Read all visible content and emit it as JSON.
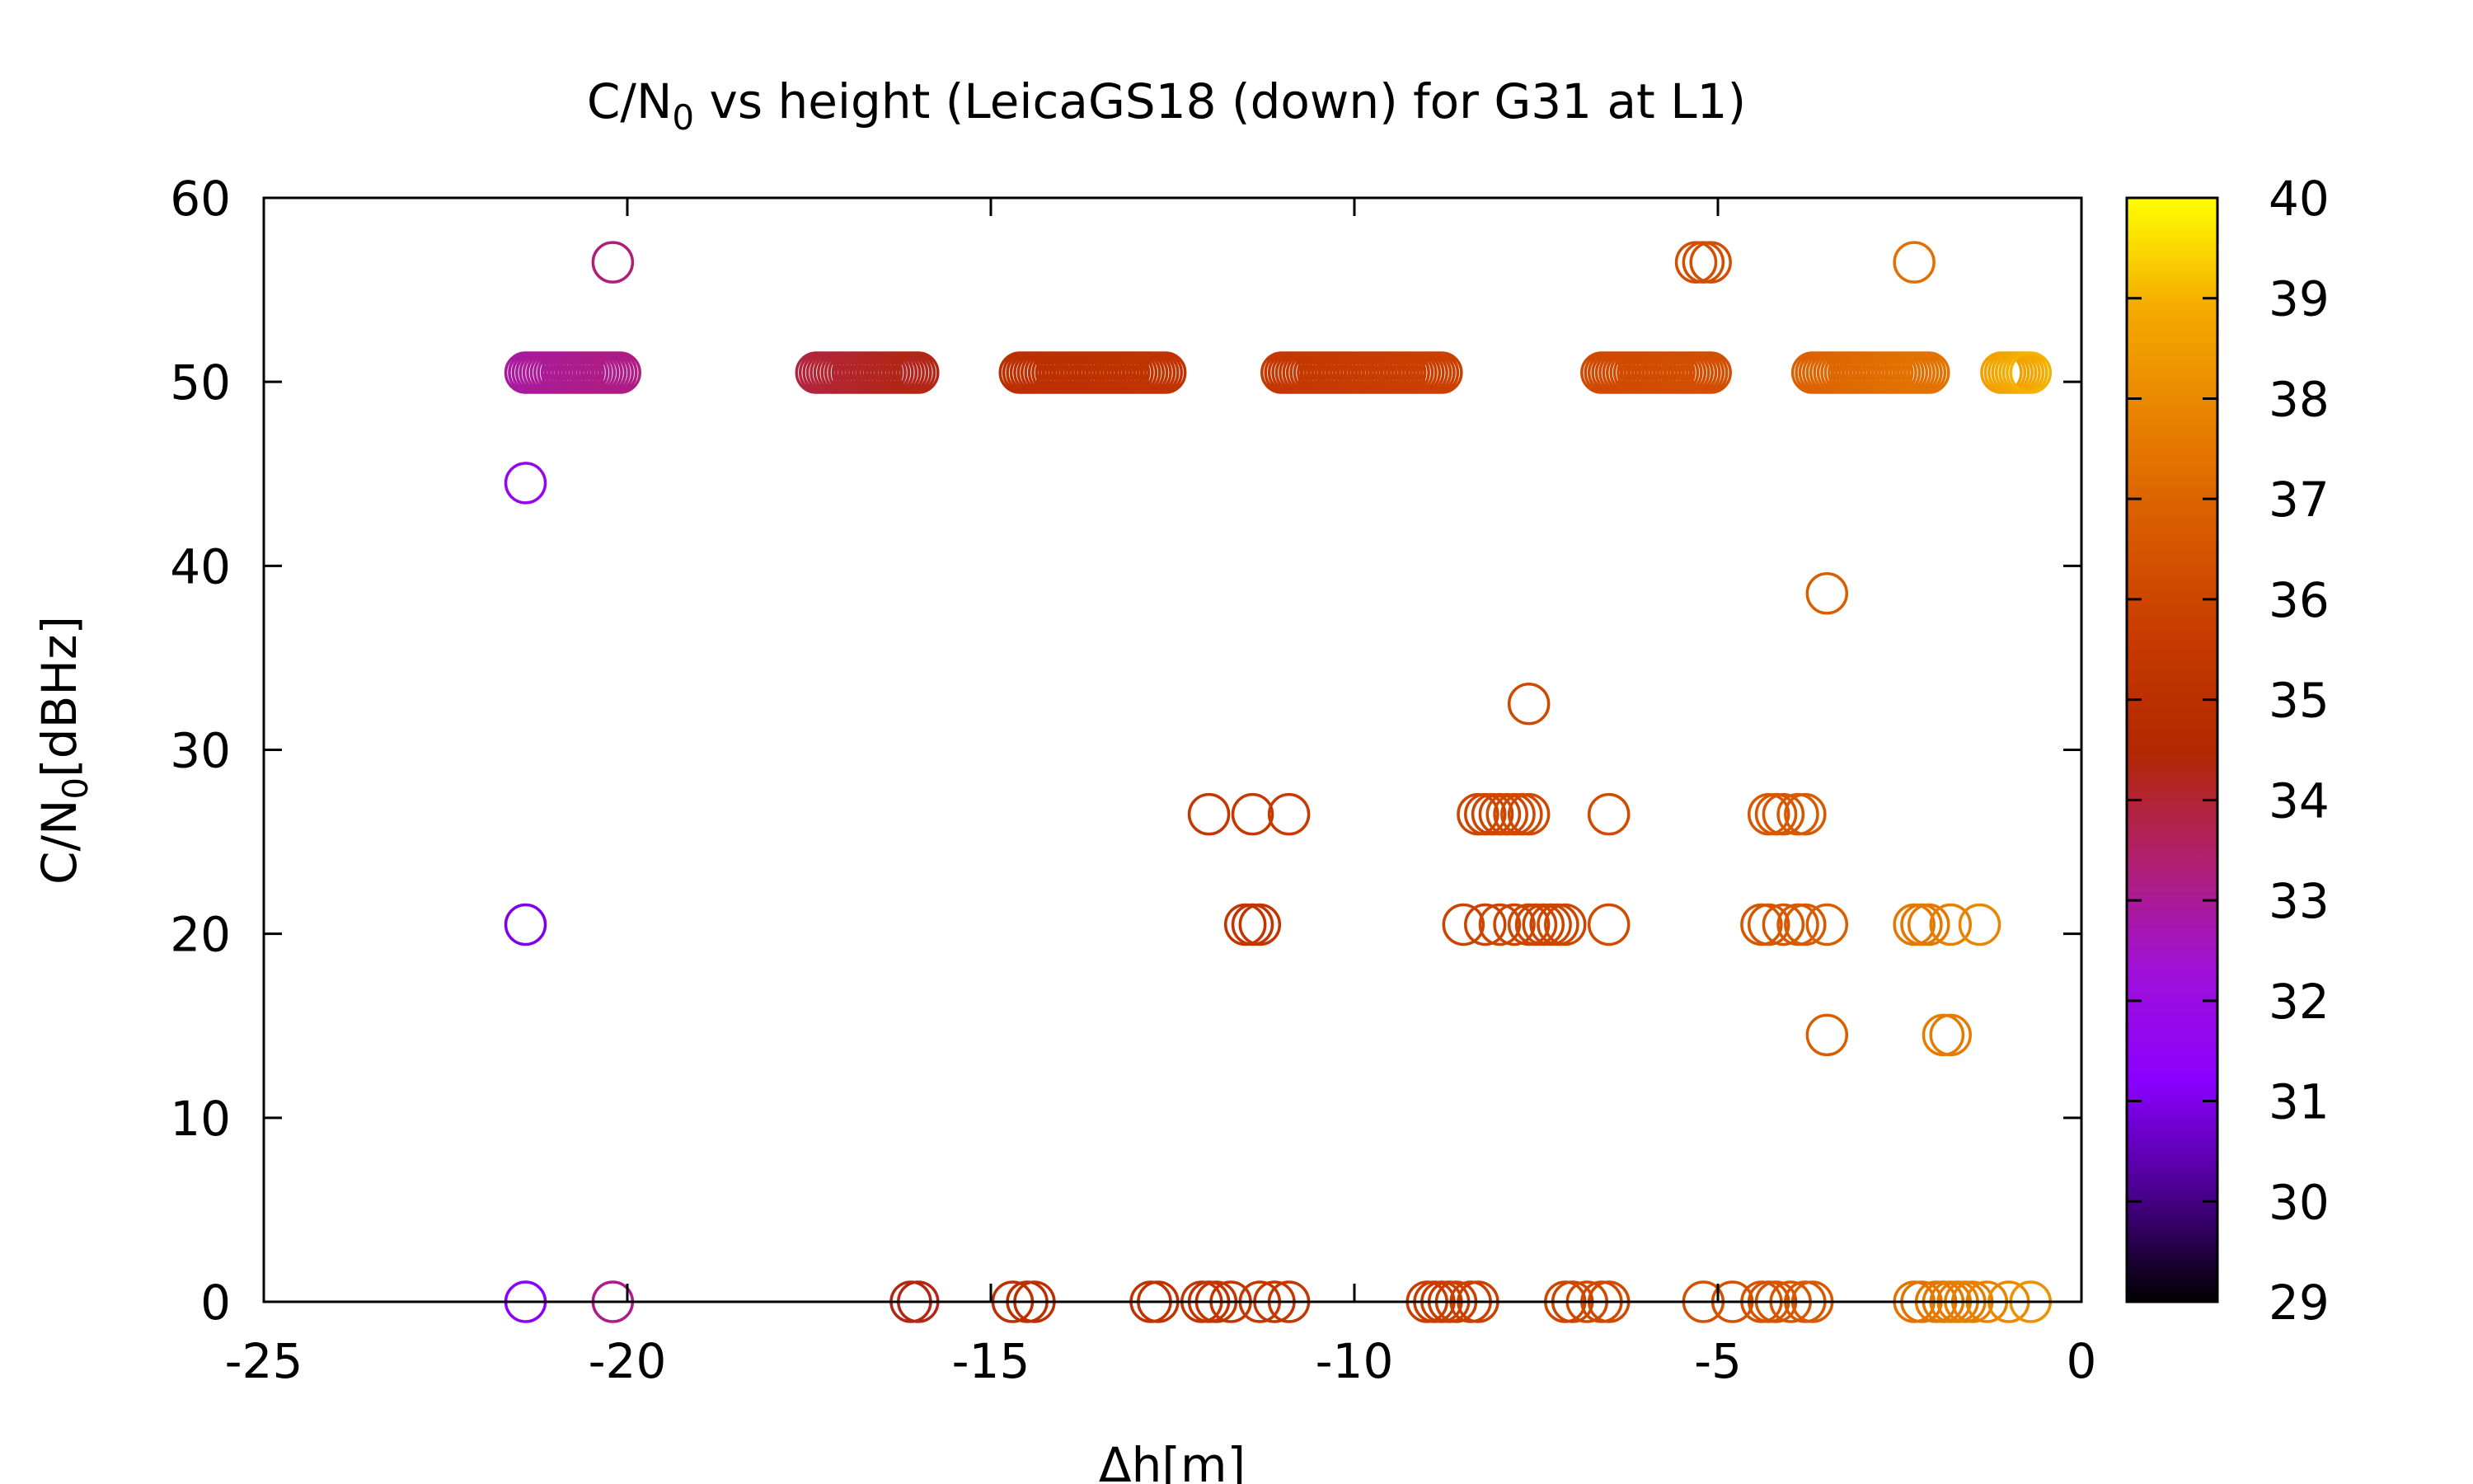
{
  "chart_data": {
    "type": "scatter",
    "title": {
      "pre": "C/N",
      "sub": "0",
      "post": " vs height (LeicaGS18 (down) for G31 at L1)"
    },
    "xlabel": "Δh[m]",
    "ylabel": {
      "pre": "C/N",
      "sub": "0",
      "post": "[dBHz]"
    },
    "xlim": [
      -25,
      0
    ],
    "ylim": [
      0,
      60
    ],
    "xticks": [
      "-25",
      "-20",
      "-15",
      "-10",
      "-5",
      "0"
    ],
    "yticks": [
      "0",
      "10",
      "20",
      "30",
      "40",
      "50",
      "60"
    ],
    "colorbar": {
      "range": [
        29,
        40
      ],
      "ticks": [
        "29",
        "30",
        "31",
        "32",
        "33",
        "34",
        "35",
        "36",
        "37",
        "38",
        "39",
        "40"
      ],
      "palette": [
        "#000000",
        "#4b0090",
        "#8a00ff",
        "#a010d8",
        "#b02070",
        "#b32800",
        "#c73a00",
        "#d85a00",
        "#e88200",
        "#f4aa00",
        "#ffff00"
      ]
    },
    "marker": "open-circle",
    "segments": [
      {
        "x0": -21.4,
        "x1": -20.1,
        "y": 50.5,
        "c0": 32.9,
        "c1": 33.2
      },
      {
        "x0": -17.4,
        "x1": -16.0,
        "y": 50.5,
        "c0": 33.9,
        "c1": 34.3
      },
      {
        "x0": -14.6,
        "x1": -12.6,
        "y": 50.5,
        "c0": 34.9,
        "c1": 35.2
      },
      {
        "x0": -11.0,
        "x1": -8.8,
        "y": 50.5,
        "c0": 35.4,
        "c1": 35.8
      },
      {
        "x0": -6.6,
        "x1": -5.1,
        "y": 50.5,
        "c0": 36.1,
        "c1": 36.3
      },
      {
        "x0": -3.7,
        "x1": -2.1,
        "y": 50.5,
        "c0": 36.9,
        "c1": 37.4
      },
      {
        "x0": -1.1,
        "x1": -0.7,
        "y": 50.5,
        "c0": 38.6,
        "c1": 39.0
      }
    ],
    "points": [
      {
        "x": -20.2,
        "y": 56.5,
        "c": 33.3
      },
      {
        "x": -5.3,
        "y": 56.5,
        "c": 36.3
      },
      {
        "x": -5.2,
        "y": 56.5,
        "c": 36.3
      },
      {
        "x": -5.1,
        "y": 56.5,
        "c": 36.3
      },
      {
        "x": -2.3,
        "y": 56.5,
        "c": 37.3
      },
      {
        "x": -21.4,
        "y": 44.5,
        "c": 31.7
      },
      {
        "x": -3.5,
        "y": 38.5,
        "c": 36.8
      },
      {
        "x": -7.6,
        "y": 32.5,
        "c": 36.1
      },
      {
        "x": -12.0,
        "y": 26.5,
        "c": 35.4
      },
      {
        "x": -11.4,
        "y": 26.5,
        "c": 35.5
      },
      {
        "x": -10.9,
        "y": 26.5,
        "c": 35.6
      },
      {
        "x": -8.3,
        "y": 26.5,
        "c": 36.0
      },
      {
        "x": -8.2,
        "y": 26.5,
        "c": 36.0
      },
      {
        "x": -8.1,
        "y": 26.5,
        "c": 36.0
      },
      {
        "x": -8.0,
        "y": 26.5,
        "c": 36.0
      },
      {
        "x": -7.9,
        "y": 26.5,
        "c": 36.1
      },
      {
        "x": -7.8,
        "y": 26.5,
        "c": 36.1
      },
      {
        "x": -7.7,
        "y": 26.5,
        "c": 36.1
      },
      {
        "x": -7.6,
        "y": 26.5,
        "c": 36.1
      },
      {
        "x": -6.5,
        "y": 26.5,
        "c": 36.2
      },
      {
        "x": -4.3,
        "y": 26.5,
        "c": 36.6
      },
      {
        "x": -4.2,
        "y": 26.5,
        "c": 36.6
      },
      {
        "x": -4.1,
        "y": 26.5,
        "c": 36.6
      },
      {
        "x": -3.9,
        "y": 26.5,
        "c": 36.7
      },
      {
        "x": -3.8,
        "y": 26.5,
        "c": 36.7
      },
      {
        "x": -21.4,
        "y": 20.5,
        "c": 31.0
      },
      {
        "x": -11.5,
        "y": 20.5,
        "c": 35.3
      },
      {
        "x": -11.4,
        "y": 20.5,
        "c": 35.3
      },
      {
        "x": -11.3,
        "y": 20.5,
        "c": 35.3
      },
      {
        "x": -8.5,
        "y": 20.5,
        "c": 35.9
      },
      {
        "x": -8.2,
        "y": 20.5,
        "c": 35.9
      },
      {
        "x": -8.0,
        "y": 20.5,
        "c": 36.0
      },
      {
        "x": -7.8,
        "y": 20.5,
        "c": 36.0
      },
      {
        "x": -7.6,
        "y": 20.5,
        "c": 36.0
      },
      {
        "x": -7.5,
        "y": 20.5,
        "c": 36.0
      },
      {
        "x": -7.4,
        "y": 20.5,
        "c": 36.0
      },
      {
        "x": -7.3,
        "y": 20.5,
        "c": 36.0
      },
      {
        "x": -7.2,
        "y": 20.5,
        "c": 36.0
      },
      {
        "x": -7.1,
        "y": 20.5,
        "c": 36.0
      },
      {
        "x": -6.5,
        "y": 20.5,
        "c": 36.2
      },
      {
        "x": -4.4,
        "y": 20.5,
        "c": 36.6
      },
      {
        "x": -4.3,
        "y": 20.5,
        "c": 36.6
      },
      {
        "x": -4.1,
        "y": 20.5,
        "c": 36.6
      },
      {
        "x": -3.9,
        "y": 20.5,
        "c": 36.7
      },
      {
        "x": -3.8,
        "y": 20.5,
        "c": 36.7
      },
      {
        "x": -3.5,
        "y": 20.5,
        "c": 36.8
      },
      {
        "x": -2.3,
        "y": 20.5,
        "c": 37.5
      },
      {
        "x": -2.2,
        "y": 20.5,
        "c": 37.5
      },
      {
        "x": -2.1,
        "y": 20.5,
        "c": 37.5
      },
      {
        "x": -1.8,
        "y": 20.5,
        "c": 37.7
      },
      {
        "x": -1.4,
        "y": 20.5,
        "c": 37.9
      },
      {
        "x": -3.5,
        "y": 14.5,
        "c": 36.8
      },
      {
        "x": -1.9,
        "y": 14.5,
        "c": 37.6
      },
      {
        "x": -1.8,
        "y": 14.5,
        "c": 37.6
      },
      {
        "x": -21.4,
        "y": 0,
        "c": 31.2
      },
      {
        "x": -20.2,
        "y": 0,
        "c": 33.1
      },
      {
        "x": -16.1,
        "y": 0,
        "c": 34.3
      },
      {
        "x": -16.0,
        "y": 0,
        "c": 34.3
      },
      {
        "x": -14.7,
        "y": 0,
        "c": 35.0
      },
      {
        "x": -14.5,
        "y": 0,
        "c": 35.0
      },
      {
        "x": -14.4,
        "y": 0,
        "c": 35.0
      },
      {
        "x": -12.8,
        "y": 0,
        "c": 35.2
      },
      {
        "x": -12.7,
        "y": 0,
        "c": 35.2
      },
      {
        "x": -12.1,
        "y": 0,
        "c": 35.3
      },
      {
        "x": -12.0,
        "y": 0,
        "c": 35.3
      },
      {
        "x": -11.9,
        "y": 0,
        "c": 35.3
      },
      {
        "x": -11.7,
        "y": 0,
        "c": 35.3
      },
      {
        "x": -11.3,
        "y": 0,
        "c": 35.4
      },
      {
        "x": -11.1,
        "y": 0,
        "c": 35.4
      },
      {
        "x": -10.9,
        "y": 0,
        "c": 35.4
      },
      {
        "x": -9.0,
        "y": 0,
        "c": 35.7
      },
      {
        "x": -8.9,
        "y": 0,
        "c": 35.7
      },
      {
        "x": -8.8,
        "y": 0,
        "c": 35.7
      },
      {
        "x": -8.7,
        "y": 0,
        "c": 35.7
      },
      {
        "x": -8.6,
        "y": 0,
        "c": 35.8
      },
      {
        "x": -8.4,
        "y": 0,
        "c": 35.8
      },
      {
        "x": -8.3,
        "y": 0,
        "c": 35.8
      },
      {
        "x": -7.1,
        "y": 0,
        "c": 36.0
      },
      {
        "x": -7.0,
        "y": 0,
        "c": 36.0
      },
      {
        "x": -6.8,
        "y": 0,
        "c": 36.1
      },
      {
        "x": -6.6,
        "y": 0,
        "c": 36.1
      },
      {
        "x": -6.5,
        "y": 0,
        "c": 36.1
      },
      {
        "x": -5.2,
        "y": 0,
        "c": 36.4
      },
      {
        "x": -4.8,
        "y": 0,
        "c": 36.4
      },
      {
        "x": -4.4,
        "y": 0,
        "c": 36.5
      },
      {
        "x": -4.3,
        "y": 0,
        "c": 36.5
      },
      {
        "x": -4.2,
        "y": 0,
        "c": 36.5
      },
      {
        "x": -4.0,
        "y": 0,
        "c": 36.6
      },
      {
        "x": -3.8,
        "y": 0,
        "c": 36.6
      },
      {
        "x": -3.7,
        "y": 0,
        "c": 36.7
      },
      {
        "x": -2.3,
        "y": 0,
        "c": 37.4
      },
      {
        "x": -2.2,
        "y": 0,
        "c": 37.4
      },
      {
        "x": -2.0,
        "y": 0,
        "c": 37.5
      },
      {
        "x": -1.9,
        "y": 0,
        "c": 37.5
      },
      {
        "x": -1.8,
        "y": 0,
        "c": 37.6
      },
      {
        "x": -1.7,
        "y": 0,
        "c": 37.6
      },
      {
        "x": -1.6,
        "y": 0,
        "c": 37.7
      },
      {
        "x": -1.5,
        "y": 0,
        "c": 37.7
      },
      {
        "x": -1.3,
        "y": 0,
        "c": 37.8
      },
      {
        "x": -1.0,
        "y": 0,
        "c": 38.0
      },
      {
        "x": -0.7,
        "y": 0,
        "c": 38.2
      }
    ]
  }
}
